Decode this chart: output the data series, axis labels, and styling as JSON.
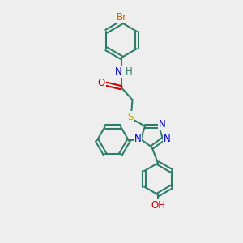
{
  "bg_color": "#eeeeee",
  "bond_color": "#2d7d6b",
  "bond_width": 1.5,
  "atom_colors": {
    "Br": "#cc6600",
    "N": "#0000cc",
    "O": "#cc0000",
    "S": "#bbaa00",
    "C": "#2d7d6b",
    "H": "#2d7d6b"
  },
  "font_size": 8.5,
  "fig_size": [
    3.0,
    3.0
  ],
  "dpi": 100
}
